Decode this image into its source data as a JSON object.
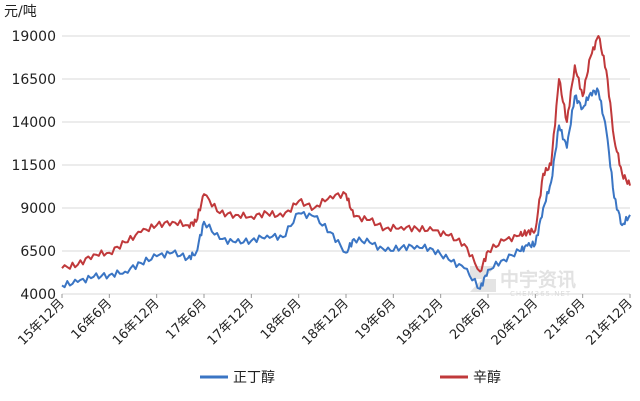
{
  "chart_data": {
    "type": "line",
    "ylabel": "元/吨",
    "ylim": [
      4000,
      19000
    ],
    "yticks": [
      4000,
      6500,
      9000,
      11500,
      14000,
      16500,
      19000
    ],
    "grid": "horizontal",
    "legend_position": "bottom",
    "xlim": [
      "15年12月",
      "21年12月"
    ],
    "x_ticks": [
      "15年12月",
      "16年6月",
      "16年12月",
      "17年6月",
      "17年12月",
      "18年6月",
      "18年12月",
      "19年6月",
      "19年12月",
      "20年6月",
      "20年12月",
      "21年6月",
      "21年12月"
    ],
    "x": [
      "15年12月",
      "16年2月",
      "16年4月",
      "16年6月",
      "16年8月",
      "16年10月",
      "16年12月",
      "17年2月",
      "17年4月",
      "17年5月",
      "17年6月",
      "17年8月",
      "17年10月",
      "17年12月",
      "18年2月",
      "18年4月",
      "18年6月",
      "18年8月",
      "18年10月",
      "18年12月",
      "19年1月",
      "19年3月",
      "19年5月",
      "19年7月",
      "19年9月",
      "19年11月",
      "20年1月",
      "20年3月",
      "20年5月",
      "20年6月",
      "20年8月",
      "20年10月",
      "20年11月",
      "20年12月",
      "21年1月",
      "21年2月",
      "21年3月",
      "21年4月",
      "21年5月",
      "21年6月",
      "21年7月",
      "21年8月",
      "21年9月",
      "21年10月",
      "21年11月",
      "21年12月"
    ],
    "series": [
      {
        "name": "正丁醇",
        "color": "#3a75c4",
        "values": [
          4500,
          4700,
          5000,
          5100,
          5300,
          5800,
          6200,
          6400,
          6100,
          6400,
          8200,
          7200,
          7000,
          7100,
          7400,
          7300,
          8700,
          8500,
          7600,
          6400,
          7200,
          7000,
          6500,
          6700,
          6800,
          6600,
          6000,
          5500,
          4300,
          5400,
          6000,
          6500,
          6800,
          6900,
          9000,
          10500,
          13800,
          12500,
          15500,
          14800,
          15700,
          15800,
          13500,
          9600,
          8000,
          8600
        ]
      },
      {
        "name": "辛醇",
        "color": "#c0393b",
        "values": [
          5500,
          5700,
          6300,
          6400,
          7000,
          7600,
          8000,
          8200,
          8000,
          8200,
          9800,
          8700,
          8600,
          8500,
          8700,
          8500,
          9400,
          9000,
          9700,
          9800,
          8500,
          8300,
          7800,
          7900,
          7800,
          7700,
          7400,
          6900,
          5300,
          6500,
          7100,
          7400,
          7600,
          7700,
          11000,
          11500,
          16500,
          14000,
          17300,
          15500,
          17800,
          19000,
          17000,
          13000,
          11000,
          10300
        ]
      }
    ]
  },
  "watermark": {
    "brand": "中宇资讯",
    "site": "CHEM365.NET",
    "color": "#c8c8c8"
  }
}
